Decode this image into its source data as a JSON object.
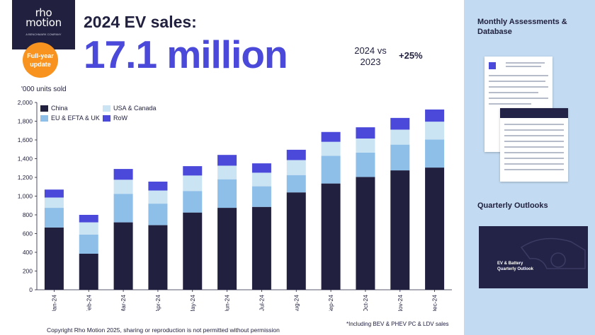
{
  "header": {
    "logo_line1": "rho",
    "logo_line2": "motion",
    "logo_sub": "A BENCHMARK COMPANY",
    "badge_line1": "Full-year",
    "badge_line2": "update",
    "title": "2024 EV sales:",
    "big_number": "17.1 million",
    "compare_line1": "2024 vs",
    "compare_line2": "2023",
    "compare_value": "+25%"
  },
  "chart_data": {
    "type": "bar",
    "stacked": true,
    "units_label": "'000 units sold",
    "categories": [
      "Jan-24",
      "Feb-24",
      "Mar-24",
      "Apr-24",
      "May-24",
      "Jun-24",
      "Jul-24",
      "Aug-24",
      "Sep-24",
      "Oct-24",
      "Nov-24",
      "Dec-24"
    ],
    "series": [
      {
        "name": "China",
        "color": "#21213f",
        "values": [
          665,
          385,
          720,
          690,
          825,
          875,
          885,
          1040,
          1135,
          1205,
          1275,
          1305
        ]
      },
      {
        "name": "EU & EFTA & UK",
        "color": "#8ebfe9",
        "values": [
          210,
          205,
          305,
          230,
          230,
          305,
          220,
          185,
          295,
          260,
          275,
          300
        ]
      },
      {
        "name": "USA & Canada",
        "color": "#cbe4f4",
        "values": [
          110,
          130,
          150,
          140,
          165,
          145,
          145,
          160,
          150,
          150,
          160,
          190
        ]
      },
      {
        "name": "RoW",
        "color": "#4a49d9",
        "values": [
          85,
          80,
          115,
          95,
          100,
          115,
          100,
          110,
          105,
          120,
          125,
          130
        ]
      }
    ],
    "ylim": [
      0,
      2000
    ],
    "yticks": [
      "0",
      "200",
      "400",
      "600",
      "800",
      "1,000",
      "1,200",
      "1,400",
      "1,600",
      "1,800",
      "2,000"
    ],
    "legend_position": "top-left",
    "grid": false
  },
  "footnote": "*Including BEV & PHEV PC & LDV sales",
  "copyright": "Copyright Rho Motion 2025, sharing or reproduction is not permitted without permission",
  "side": {
    "monthly_title": "Monthly Assessments & Database",
    "quarterly_title": "Quarterly Outlooks",
    "outlook_cover_line1": "EV & Battery",
    "outlook_cover_line2": "Quarterly Outlook"
  }
}
